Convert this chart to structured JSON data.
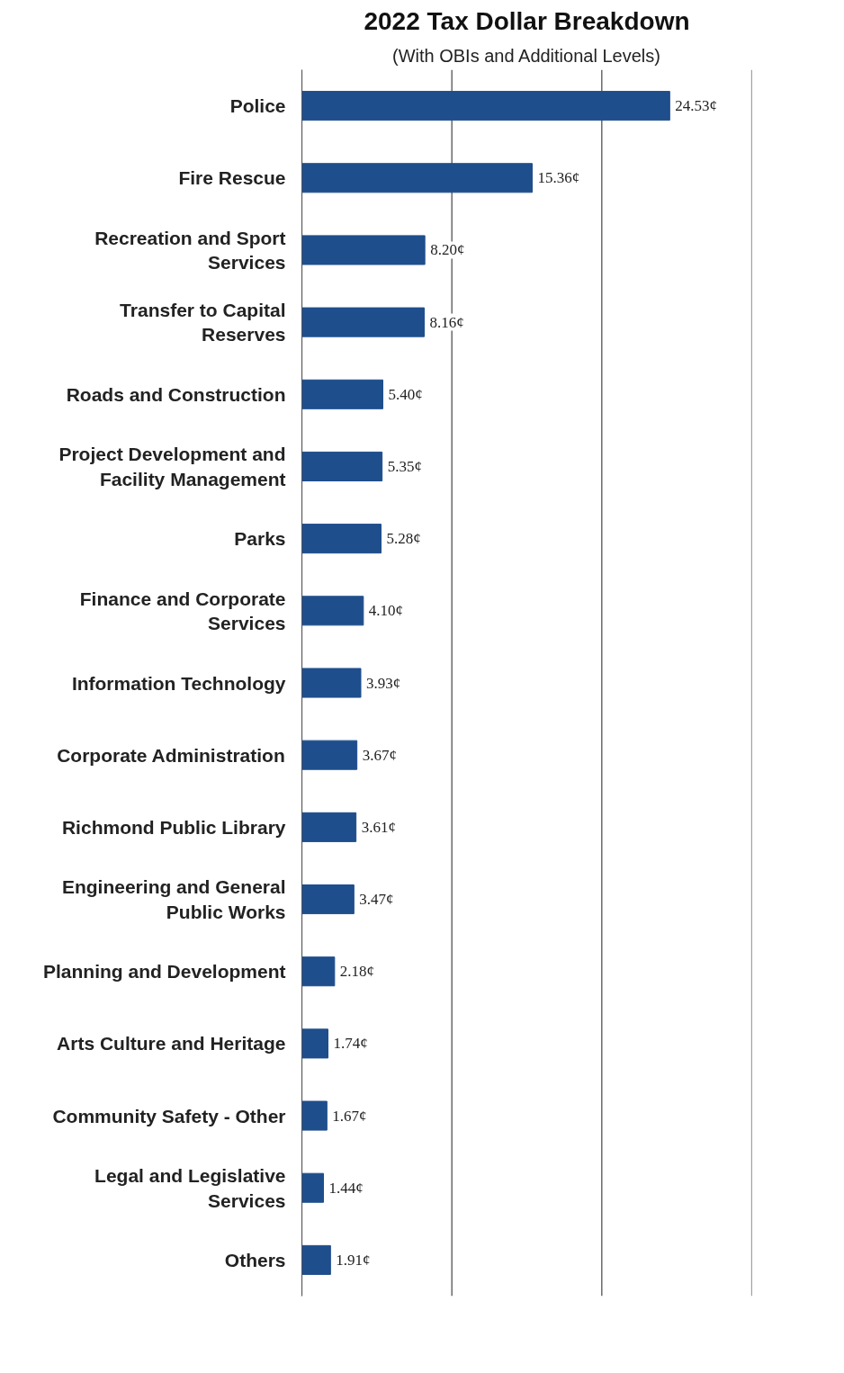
{
  "chart_data": {
    "type": "bar",
    "orientation": "horizontal",
    "title": "2022 Tax Dollar Breakdown",
    "subtitle": "(With OBIs and Additional Levels)",
    "categories": [
      "Police",
      "Fire Rescue",
      "Recreation and Sport Services",
      "Transfer to Capital Reserves",
      "Roads and Construction",
      "Project Development and Facility Management",
      "Parks",
      "Finance and Corporate Services",
      "Information Technology",
      "Corporate Administration",
      "Richmond Public Library",
      "Engineering and General Public Works",
      "Planning and Development",
      "Arts Culture and Heritage",
      "Community Safety - Other",
      "Legal and Legislative Services",
      "Others"
    ],
    "values": [
      24.53,
      15.36,
      8.2,
      8.16,
      5.4,
      5.35,
      5.28,
      4.1,
      3.93,
      3.67,
      3.61,
      3.47,
      2.18,
      1.74,
      1.67,
      1.44,
      1.91
    ],
    "value_labels": [
      "24.53¢",
      "15.36¢",
      "8.20¢",
      "8.16¢",
      "5.40¢",
      "5.35¢",
      "5.28¢",
      "4.10¢",
      "3.93¢",
      "3.67¢",
      "3.61¢",
      "3.47¢",
      "2.18¢",
      "1.74¢",
      "1.67¢",
      "1.44¢",
      "1.91¢"
    ],
    "color": "#1f4e8c",
    "xlim": [
      0,
      30
    ],
    "xticks": [
      {
        "value": 0,
        "label": null
      },
      {
        "value": 10,
        "label": null
      },
      {
        "value": 20,
        "label": null
      },
      {
        "value": 30,
        "label": null
      }
    ],
    "grid": "x",
    "tick_labels": "y"
  }
}
